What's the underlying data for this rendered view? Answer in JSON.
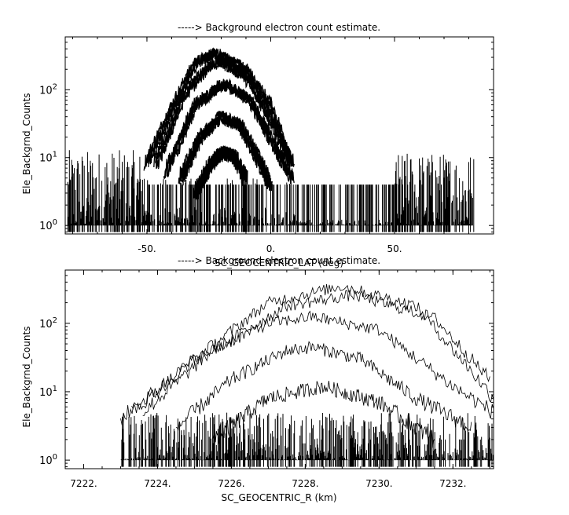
{
  "chart_data": [
    {
      "type": "line",
      "title": "-----> Background electron count estimate.",
      "xlabel": "SC_GEOCENTRIC_LAT (deg)",
      "ylabel": "Ele_Backgrnd_Counts",
      "y_scale": "log",
      "xlim": [
        -83,
        90
      ],
      "ylim": [
        0.75,
        600
      ],
      "x_tick_labels": [
        "-50.",
        "0.",
        "50."
      ],
      "y_tick_labels": [
        "10^0",
        "10^1",
        "10^2"
      ],
      "background_floor_range": [
        1,
        4
      ],
      "background_noise_regions": [
        [
          -82,
          -50,
          13
        ],
        [
          -50,
          10,
          5
        ],
        [
          10,
          50,
          2
        ],
        [
          50,
          82,
          12
        ]
      ],
      "series": [
        {
          "peak_x": -22,
          "peak_y": 350,
          "values": [
            [
              -50,
              8
            ],
            [
              -40,
              50
            ],
            [
              -30,
              250
            ],
            [
              -22,
              350
            ],
            [
              -10,
              200
            ],
            [
              0,
              60
            ],
            [
              8,
              10
            ]
          ]
        },
        {
          "peak_x": -20,
          "peak_y": 260,
          "values": [
            [
              -46,
              8
            ],
            [
              -35,
              80
            ],
            [
              -25,
              220
            ],
            [
              -20,
              260
            ],
            [
              -10,
              160
            ],
            [
              0,
              40
            ],
            [
              9,
              8
            ]
          ]
        },
        {
          "peak_x": -18,
          "peak_y": 120,
          "values": [
            [
              -42,
              6
            ],
            [
              -30,
              60
            ],
            [
              -20,
              115
            ],
            [
              -18,
              120
            ],
            [
              -8,
              70
            ],
            [
              2,
              15
            ],
            [
              9,
              5
            ]
          ]
        },
        {
          "peak_x": -20,
          "peak_y": 40,
          "values": [
            [
              -36,
              5
            ],
            [
              -28,
              20
            ],
            [
              -20,
              40
            ],
            [
              -12,
              30
            ],
            [
              -5,
              10
            ],
            [
              0,
              4
            ]
          ]
        },
        {
          "peak_x": -19,
          "peak_y": 12,
          "values": [
            [
              -30,
              3
            ],
            [
              -24,
              8
            ],
            [
              -19,
              12
            ],
            [
              -14,
              10
            ],
            [
              -10,
              5
            ]
          ]
        }
      ]
    },
    {
      "type": "line",
      "title": "-----> Background electron count estimate.",
      "xlabel": "SC_GEOCENTRIC_R (km)",
      "ylabel": "Ele_Backgrnd_Counts",
      "y_scale": "log",
      "xlim": [
        7221.5,
        7233.1
      ],
      "ylim": [
        0.75,
        600
      ],
      "x_tick_labels": [
        "7222.",
        "7224.",
        "7226.",
        "7228.",
        "7230.",
        "7232."
      ],
      "y_tick_labels": [
        "10^0",
        "10^1",
        "10^2"
      ],
      "background_floor_range": [
        1,
        2
      ],
      "background_noise_regions": [
        [
          7223,
          7233.1,
          5
        ]
      ],
      "series": [
        {
          "peak_x": 7229.0,
          "peak_y": 350,
          "values": [
            [
              7223.3,
              5
            ],
            [
              7225,
              30
            ],
            [
              7227,
              200
            ],
            [
              7229,
              350
            ],
            [
              7231,
              180
            ],
            [
              7232.5,
              20
            ],
            [
              7233.1,
              8
            ]
          ]
        },
        {
          "peak_x": 7229.3,
          "peak_y": 260,
          "values": [
            [
              7223.6,
              5
            ],
            [
              7225.5,
              40
            ],
            [
              7227.5,
              180
            ],
            [
              7229.3,
              260
            ],
            [
              7231.5,
              120
            ],
            [
              7233,
              15
            ]
          ]
        },
        {
          "peak_x": 7228.2,
          "peak_y": 125,
          "values": [
            [
              7223.0,
              4
            ],
            [
              7225,
              30
            ],
            [
              7227,
              100
            ],
            [
              7228.2,
              125
            ],
            [
              7230,
              80
            ],
            [
              7232,
              12
            ],
            [
              7233.1,
              5
            ]
          ]
        },
        {
          "peak_x": 7228.2,
          "peak_y": 45,
          "values": [
            [
              7224.5,
              3
            ],
            [
              7226,
              15
            ],
            [
              7227.5,
              40
            ],
            [
              7228.2,
              45
            ],
            [
              7229.5,
              30
            ],
            [
              7231,
              8
            ],
            [
              7232.5,
              3
            ]
          ]
        },
        {
          "peak_x": 7228.5,
          "peak_y": 12,
          "values": [
            [
              7225.5,
              2
            ],
            [
              7227,
              8
            ],
            [
              7228.5,
              12
            ],
            [
              7230,
              7
            ],
            [
              7231.5,
              2
            ]
          ]
        }
      ]
    }
  ]
}
